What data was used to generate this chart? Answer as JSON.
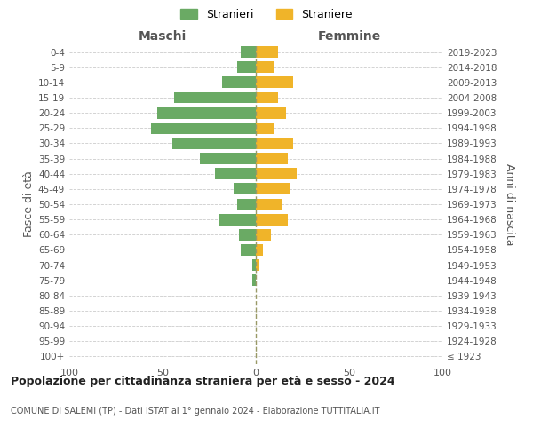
{
  "age_groups": [
    "100+",
    "95-99",
    "90-94",
    "85-89",
    "80-84",
    "75-79",
    "70-74",
    "65-69",
    "60-64",
    "55-59",
    "50-54",
    "45-49",
    "40-44",
    "35-39",
    "30-34",
    "25-29",
    "20-24",
    "15-19",
    "10-14",
    "5-9",
    "0-4"
  ],
  "birth_years": [
    "≤ 1923",
    "1924-1928",
    "1929-1933",
    "1934-1938",
    "1939-1943",
    "1944-1948",
    "1949-1953",
    "1954-1958",
    "1959-1963",
    "1964-1968",
    "1969-1973",
    "1974-1978",
    "1979-1983",
    "1984-1988",
    "1989-1993",
    "1994-1998",
    "1999-2003",
    "2004-2008",
    "2009-2013",
    "2014-2018",
    "2019-2023"
  ],
  "maschi": [
    0,
    0,
    0,
    0,
    0,
    2,
    2,
    8,
    9,
    20,
    10,
    12,
    22,
    30,
    45,
    56,
    53,
    44,
    18,
    10,
    8
  ],
  "femmine": [
    0,
    0,
    0,
    0,
    0,
    0,
    2,
    4,
    8,
    17,
    14,
    18,
    22,
    17,
    20,
    10,
    16,
    12,
    20,
    10,
    12
  ],
  "male_color": "#6aaa64",
  "female_color": "#f0b429",
  "background_color": "#ffffff",
  "grid_color": "#cccccc",
  "dashed_color": "#999966",
  "title": "Popolazione per cittadinanza straniera per età e sesso - 2024",
  "subtitle": "COMUNE DI SALEMI (TP) - Dati ISTAT al 1° gennaio 2024 - Elaborazione TUTTITALIA.IT",
  "header_left": "Maschi",
  "header_right": "Femmine",
  "ylabel_left": "Fasce di età",
  "ylabel_right": "Anni di nascita",
  "legend_male": "Stranieri",
  "legend_female": "Straniere",
  "xlim": 100,
  "xticks": [
    -100,
    -50,
    0,
    50,
    100
  ]
}
